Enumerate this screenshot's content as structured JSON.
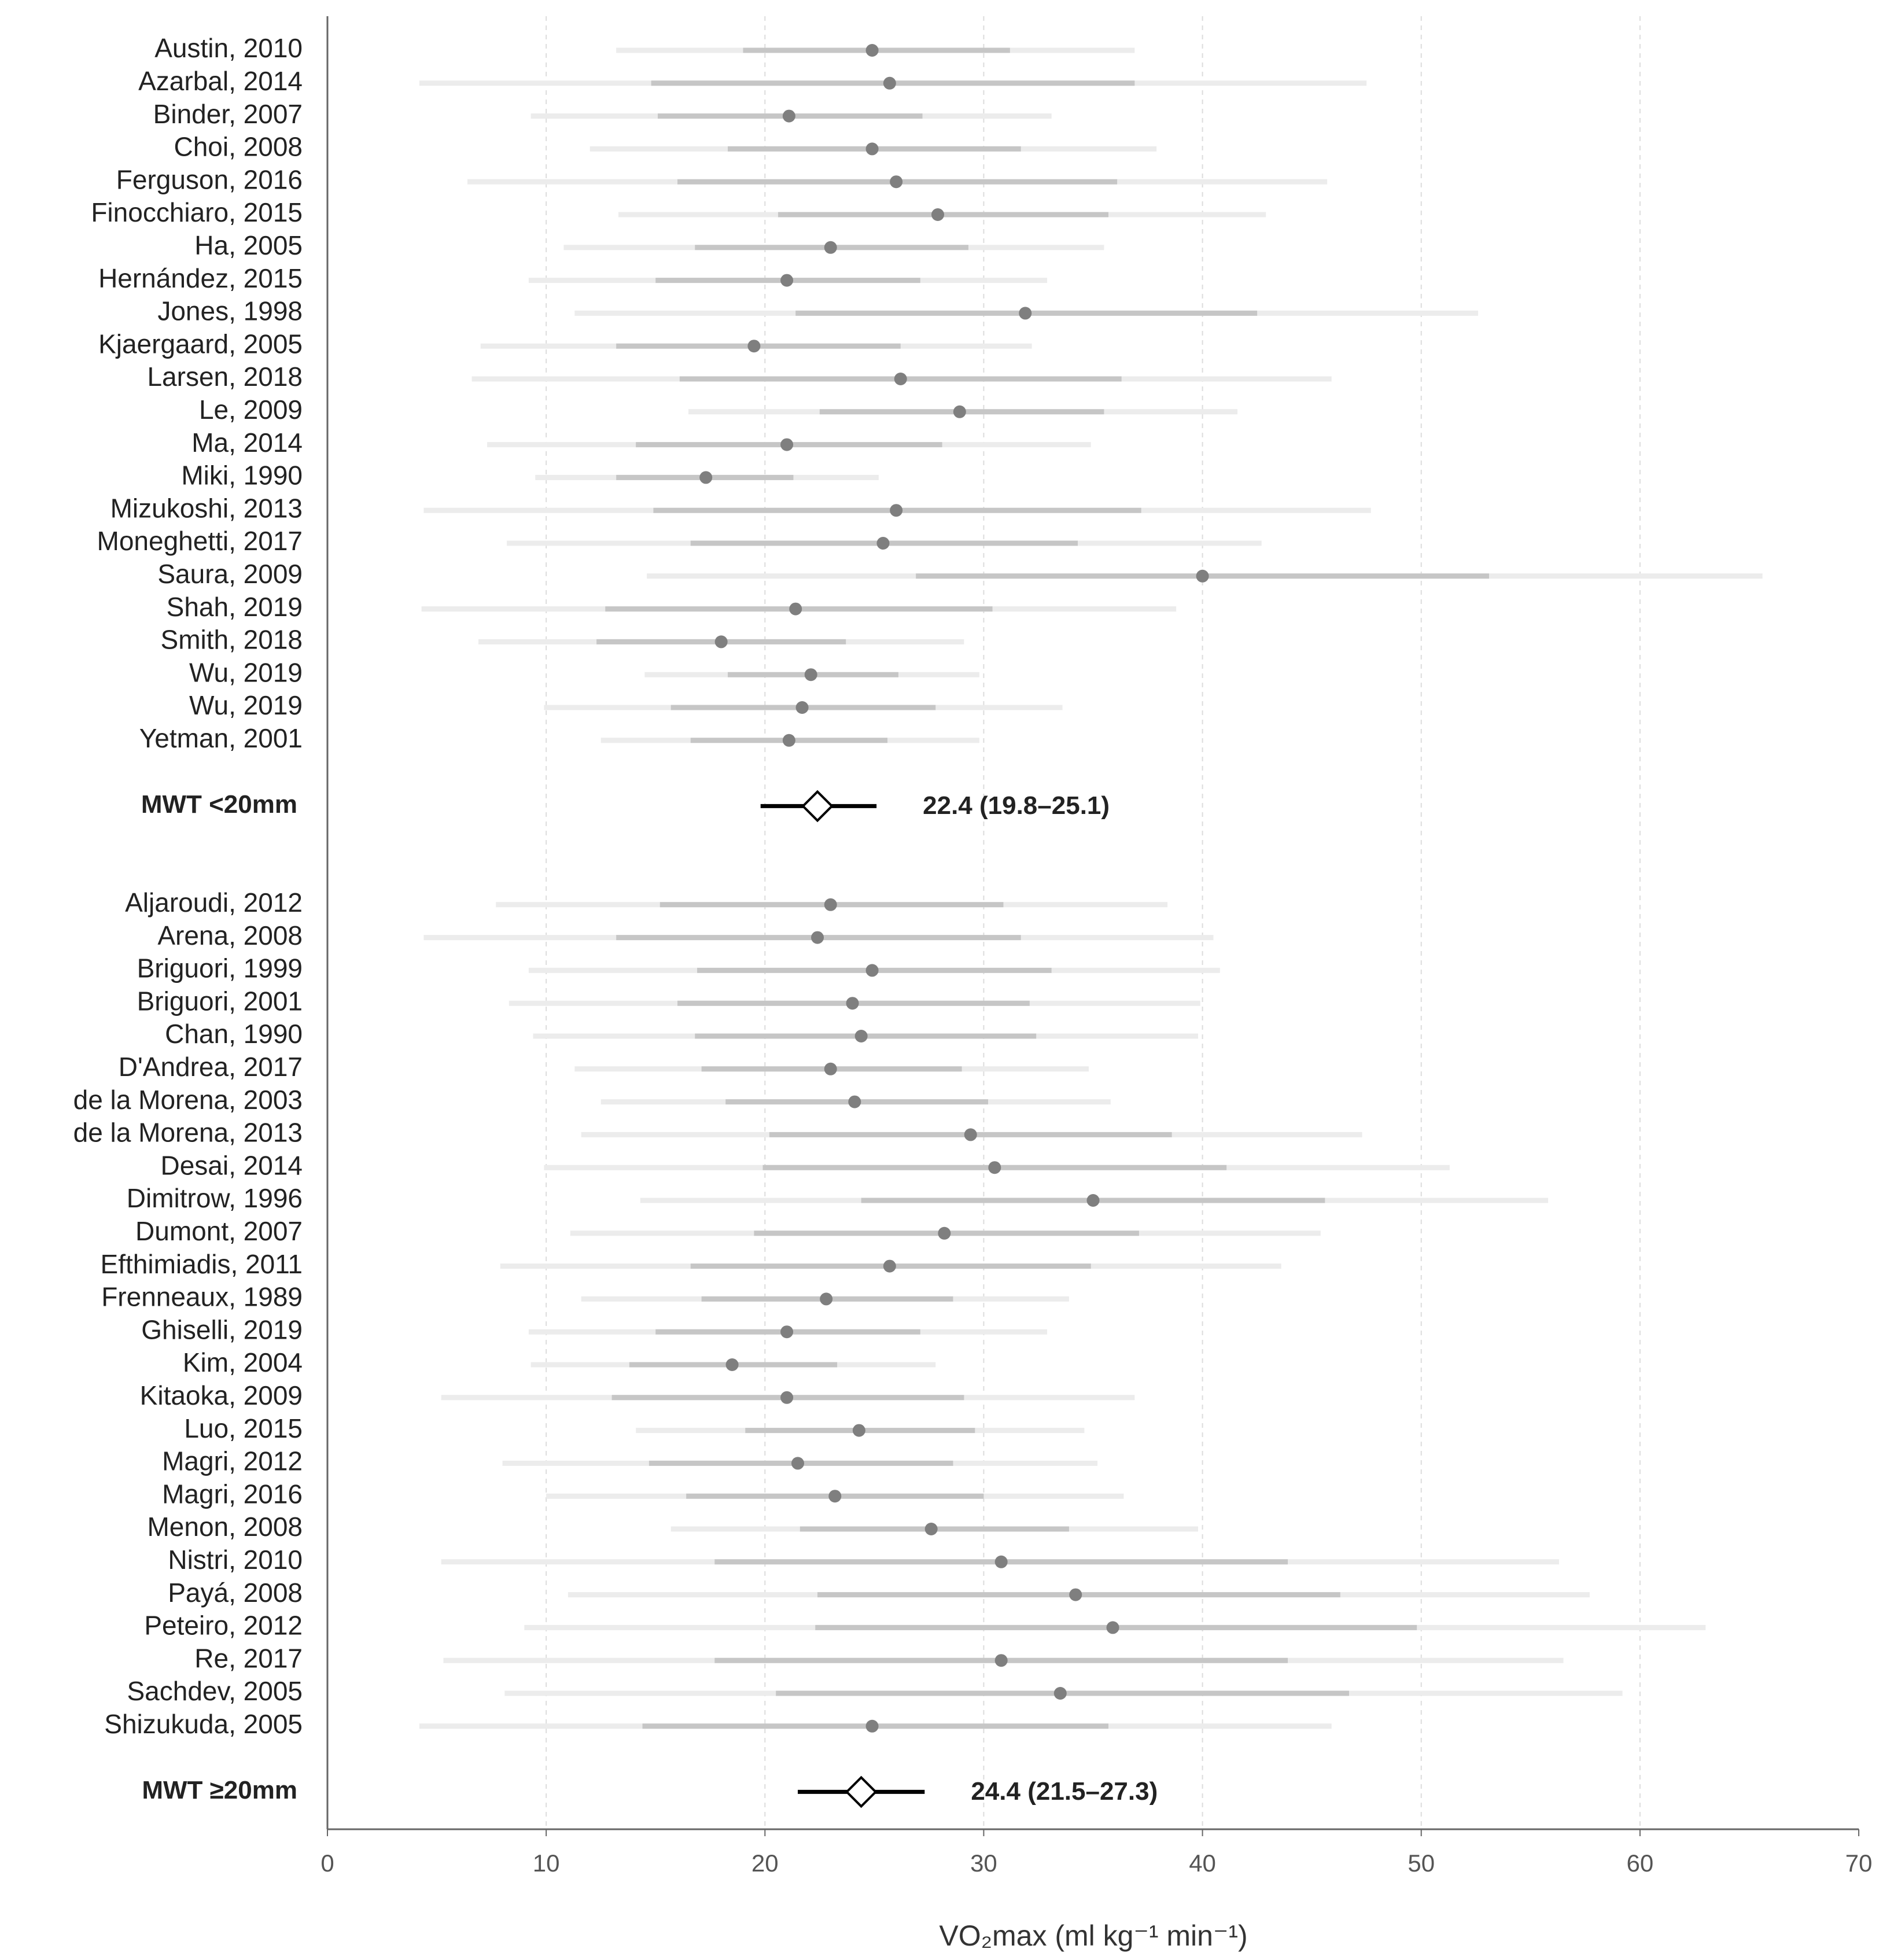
{
  "chart_data": {
    "type": "forest",
    "x_label": "VO₂max (ml kg⁻¹ min⁻¹)",
    "xlim": [
      0,
      70
    ],
    "xticks": [
      0,
      10,
      20,
      30,
      40,
      50,
      60,
      70
    ],
    "grid": true,
    "point_color": "#7f7f7f",
    "ci_color": "#c6c6c6",
    "pi_color": "#ececec",
    "pooled_color": "#000000",
    "groups": [
      {
        "name": "MWT <20mm",
        "studies": [
          "Austin, 2010",
          "Azarbal, 2014",
          "Binder, 2007",
          "Choi, 2008",
          "Ferguson, 2016",
          "Finocchiaro, 2015",
          "Ha, 2005",
          "Hernández, 2015",
          "Jones, 1998",
          "Kjaergaard, 2005",
          "Larsen, 2018",
          "Le, 2009",
          "Ma, 2014",
          "Miki, 1990",
          "Mizukoshi, 2013",
          "Moneghetti, 2017",
          "Saura, 2009",
          "Shah, 2019",
          "Smith, 2018",
          "Wu, 2019",
          "Wu, 2019",
          "Yetman, 2001"
        ],
        "values": [
          24.9,
          25.7,
          21.1,
          24.9,
          26.0,
          27.9,
          23.0,
          21.0,
          31.9,
          19.5,
          26.2,
          28.9,
          21.0,
          17.3,
          26.0,
          25.4,
          40.0,
          21.4,
          18.0,
          22.1,
          21.7,
          21.1
        ],
        "ci_lower": [
          19.0,
          14.8,
          15.1,
          18.3,
          16.0,
          20.6,
          16.8,
          15.0,
          21.4,
          13.2,
          16.1,
          22.5,
          14.1,
          13.2,
          14.9,
          16.6,
          26.9,
          12.7,
          12.3,
          18.3,
          15.7,
          16.6
        ],
        "ci_upper": [
          31.2,
          36.9,
          27.2,
          31.7,
          36.1,
          35.7,
          29.3,
          27.1,
          42.5,
          26.2,
          36.3,
          35.5,
          28.1,
          21.3,
          37.2,
          34.3,
          53.1,
          30.4,
          23.7,
          26.1,
          27.8,
          25.6
        ],
        "pi_lower": [
          13.2,
          4.2,
          9.3,
          12.0,
          6.4,
          13.3,
          10.8,
          9.2,
          11.3,
          7.0,
          6.6,
          16.5,
          7.3,
          9.5,
          4.4,
          8.2,
          14.6,
          4.3,
          6.9,
          14.5,
          9.9,
          12.5
        ],
        "pi_upper": [
          36.9,
          47.5,
          33.1,
          37.9,
          45.7,
          42.9,
          35.5,
          32.9,
          52.6,
          32.2,
          45.9,
          41.6,
          34.9,
          25.2,
          47.7,
          42.7,
          65.6,
          38.8,
          29.1,
          29.8,
          33.6,
          29.8
        ],
        "pooled": {
          "value": 22.4,
          "lower": 19.8,
          "upper": 25.1,
          "value_label": "22.4 (19.8–25.1)"
        }
      },
      {
        "name": "MWT ≥20mm",
        "studies": [
          "Aljaroudi, 2012",
          "Arena, 2008",
          "Briguori, 1999",
          "Briguori, 2001",
          "Chan, 1990",
          "D'Andrea, 2017",
          "de la Morena, 2003",
          "de la Morena, 2013",
          "Desai, 2014",
          "Dimitrow, 1996",
          "Dumont, 2007",
          "Efthimiadis, 2011",
          "Frenneaux, 1989",
          "Ghiselli, 2019",
          "Kim, 2004",
          "Kitaoka, 2009",
          "Luo, 2015",
          "Magri, 2012",
          "Magri, 2016",
          "Menon, 2008",
          "Nistri, 2010",
          "Payá, 2008",
          "Peteiro, 2012",
          "Re, 2017",
          "Sachdev, 2005",
          "Shizukuda, 2005"
        ],
        "values": [
          23.0,
          22.4,
          24.9,
          24.0,
          24.4,
          23.0,
          24.1,
          29.4,
          30.5,
          35.0,
          28.2,
          25.7,
          22.8,
          21.0,
          18.5,
          21.0,
          24.3,
          21.5,
          23.2,
          27.6,
          30.8,
          34.2,
          35.9,
          30.8,
          33.5,
          24.9
        ],
        "ci_lower": [
          15.2,
          13.2,
          16.9,
          16.0,
          16.8,
          17.1,
          18.2,
          20.2,
          19.9,
          24.4,
          19.5,
          16.6,
          17.1,
          15.0,
          13.8,
          13.0,
          19.1,
          14.7,
          16.4,
          21.6,
          17.7,
          22.4,
          22.3,
          17.7,
          20.5,
          14.4
        ],
        "ci_upper": [
          30.9,
          31.7,
          33.1,
          32.1,
          32.4,
          29.0,
          30.2,
          38.6,
          41.1,
          45.6,
          37.1,
          34.9,
          28.6,
          27.1,
          23.3,
          29.1,
          29.6,
          28.6,
          30.0,
          33.9,
          43.9,
          46.3,
          49.8,
          43.9,
          46.7,
          35.7
        ],
        "pi_lower": [
          7.7,
          4.4,
          9.2,
          8.3,
          9.4,
          11.3,
          12.5,
          11.6,
          9.9,
          14.3,
          11.1,
          7.9,
          11.6,
          9.2,
          9.3,
          5.2,
          14.1,
          8.0,
          10.0,
          15.7,
          5.2,
          11.0,
          9.0,
          5.3,
          8.1,
          4.2
        ],
        "pi_upper": [
          38.4,
          40.5,
          40.8,
          39.9,
          39.8,
          34.8,
          35.8,
          47.3,
          51.3,
          55.8,
          45.4,
          43.6,
          33.9,
          32.9,
          27.8,
          36.9,
          34.6,
          35.2,
          36.4,
          39.8,
          56.3,
          57.7,
          63.0,
          56.5,
          59.2,
          45.9
        ],
        "pooled": {
          "value": 24.4,
          "lower": 21.5,
          "upper": 27.3,
          "value_label": "24.4 (21.5–27.3)"
        }
      }
    ]
  }
}
